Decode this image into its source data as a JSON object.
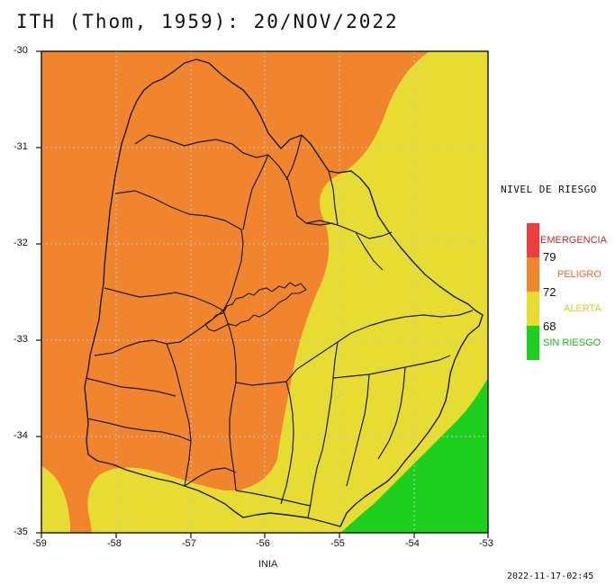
{
  "title": "ITH (Thom, 1959): 20/NOV/2022",
  "axes": {
    "x_ticks": [
      "-59",
      "-58",
      "-57",
      "-56",
      "-55",
      "-54",
      "-53"
    ],
    "y_ticks": [
      "-30",
      "-31",
      "-32",
      "-33",
      "-34",
      "-35"
    ],
    "lon_range": [
      -59,
      -53
    ],
    "lat_range": [
      -35,
      -30
    ],
    "grid": "dotted"
  },
  "legend": {
    "title": "NIVEL DE RIESGO",
    "categories": [
      {
        "label": "EMERGENCIA",
        "color": "#f03c3c",
        "text_color": "#c0282a"
      },
      {
        "label": "PELIGRO",
        "color": "#f0852d",
        "text_color": "#e46a22"
      },
      {
        "label": "ALERTA",
        "color": "#e6dc32",
        "text_color": "#d8cc20"
      },
      {
        "label": "SIN RIESGO",
        "color": "#1ed01e",
        "text_color": "#18b818"
      }
    ],
    "thresholds": [
      "79",
      "72",
      "68"
    ]
  },
  "credit": "INIA",
  "timestamp": "2022-11-17-02:45",
  "colors": {
    "peligro": "#f0852d",
    "alerta": "#e6dc32",
    "sin_riesgo": "#1ed01e",
    "border": "#1a1a1a",
    "grid": "#c8c8c8"
  }
}
